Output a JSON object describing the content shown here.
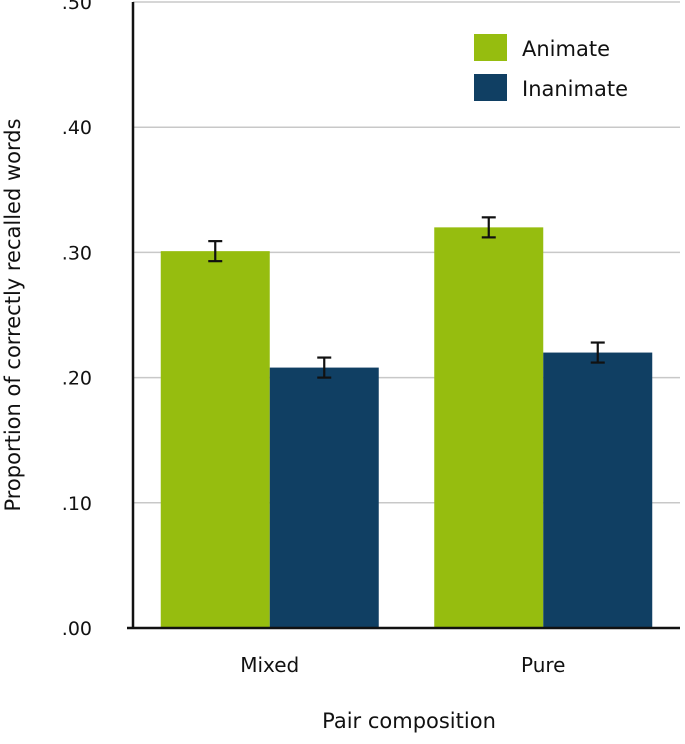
{
  "chart_data": {
    "type": "bar",
    "title": "",
    "xlabel": "Pair composition",
    "ylabel": "Proportion of correctly recalled words",
    "categories": [
      "Mixed",
      "Pure"
    ],
    "ylim": [
      0,
      0.5
    ],
    "yticks": [
      0,
      0.1,
      0.2,
      0.3,
      0.4,
      0.5
    ],
    "ytick_labels": [
      ".00",
      ".10",
      ".20",
      ".30",
      ".40",
      ".50"
    ],
    "grid": true,
    "legend_position": "top-right",
    "series": [
      {
        "name": "Animate",
        "color": "#96bd0f",
        "values": [
          0.301,
          0.32
        ],
        "errors": [
          0.008,
          0.008
        ]
      },
      {
        "name": "Inanimate",
        "color": "#103f63",
        "values": [
          0.208,
          0.22
        ],
        "errors": [
          0.008,
          0.008
        ]
      }
    ]
  }
}
